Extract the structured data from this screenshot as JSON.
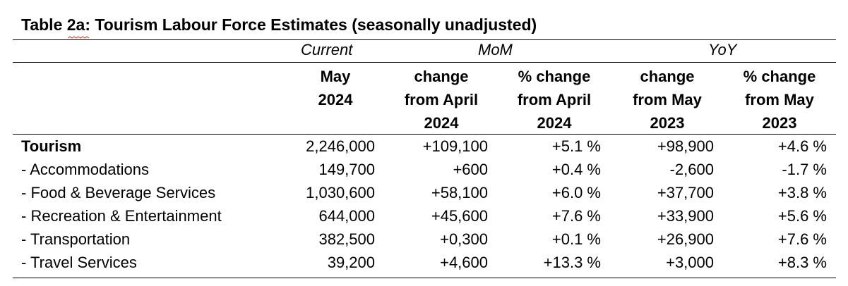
{
  "table": {
    "title": "Table 2a: Tourism Labour Force Estimates (seasonally unadjusted)",
    "groups": {
      "current": "Current",
      "mom": "MoM",
      "yoy": "YoY"
    },
    "columns": [
      [
        "",
        "May",
        "2024"
      ],
      [
        "change",
        "from April",
        "2024"
      ],
      [
        "% change",
        "from April",
        "2024"
      ],
      [
        "change",
        "from May",
        "2023"
      ],
      [
        "% change",
        "from May",
        "2023"
      ]
    ],
    "rows": [
      {
        "label": "Tourism",
        "values": [
          "2,246,000",
          "+109,100",
          "+5.1 %",
          "+98,900",
          "+4.6 %"
        ]
      },
      {
        "label": "- Accommodations",
        "values": [
          "149,700",
          "+600",
          "+0.4 %",
          "-2,600",
          "-1.7 %"
        ]
      },
      {
        "label": "- Food & Beverage Services",
        "values": [
          "1,030,600",
          "+58,100",
          "+6.0 %",
          "+37,700",
          "+3.8 %"
        ]
      },
      {
        "label": "- Recreation & Entertainment",
        "values": [
          "644,000",
          "+45,600",
          "+7.6 %",
          "+33,900",
          "+5.6 %"
        ]
      },
      {
        "label": "- Transportation",
        "values": [
          "382,500",
          "+0,300",
          "+0.1 %",
          "+26,900",
          "+7.6 %"
        ]
      },
      {
        "label": "- Travel Services",
        "values": [
          "39,200",
          "+4,600",
          "+13.3 %",
          "+3,000",
          "+8.3 %"
        ]
      }
    ]
  }
}
